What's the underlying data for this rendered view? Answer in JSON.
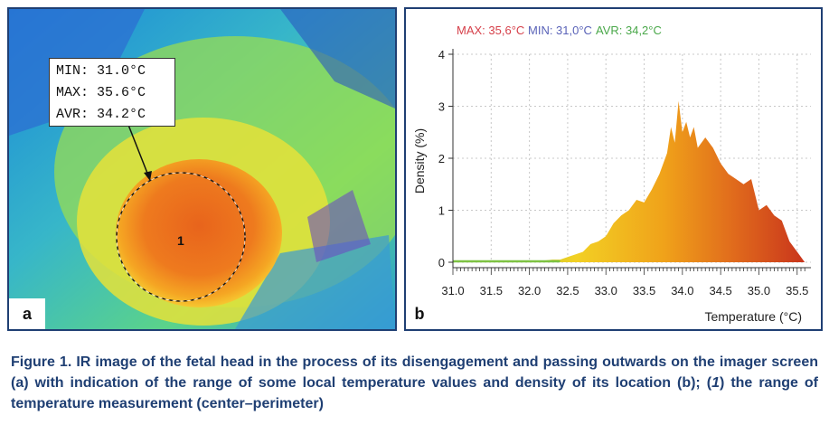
{
  "panel_a": {
    "letter": "a",
    "stats": {
      "min": "MIN: 31.0°C",
      "max": "MAX: 35.6°C",
      "avr": "AVR: 34.2°C"
    },
    "region_label": "1"
  },
  "panel_b": {
    "letter": "b",
    "header": {
      "max": "MAX: 35,6°C",
      "min": "MIN: 31,0°C",
      "avr": "AVR: 34,2°C",
      "max_color": "#d6404a",
      "min_color": "#5a63b8",
      "avr_color": "#4aa84a"
    }
  },
  "chart_data": {
    "type": "area",
    "xlabel": "Temperature (°C)",
    "ylabel": "Density (%)",
    "xlim": [
      31.0,
      35.6
    ],
    "ylim": [
      0,
      4
    ],
    "xticks": [
      "31.0",
      "31.5",
      "32.0",
      "32.5",
      "33.0",
      "33.5",
      "34.0",
      "34.5",
      "35.0",
      "35.5"
    ],
    "yticks": [
      "0",
      "1",
      "2",
      "3",
      "4"
    ],
    "grid": true,
    "gradient_colors": [
      "#7dc242",
      "#f2d024",
      "#f0a21a",
      "#e06a1c",
      "#c9351c"
    ],
    "x": [
      31.0,
      31.5,
      32.0,
      32.3,
      32.4,
      32.5,
      32.6,
      32.7,
      32.8,
      32.9,
      33.0,
      33.1,
      33.2,
      33.3,
      33.4,
      33.5,
      33.6,
      33.7,
      33.8,
      33.85,
      33.9,
      33.95,
      34.0,
      34.05,
      34.1,
      34.15,
      34.2,
      34.3,
      34.4,
      34.5,
      34.6,
      34.7,
      34.8,
      34.9,
      35.0,
      35.1,
      35.2,
      35.3,
      35.4,
      35.5,
      35.6
    ],
    "values": [
      0.0,
      0.0,
      0.0,
      0.05,
      0.05,
      0.1,
      0.15,
      0.2,
      0.35,
      0.4,
      0.5,
      0.75,
      0.9,
      1.0,
      1.2,
      1.15,
      1.4,
      1.7,
      2.1,
      2.6,
      2.3,
      3.1,
      2.5,
      2.7,
      2.4,
      2.6,
      2.2,
      2.4,
      2.2,
      1.9,
      1.7,
      1.6,
      1.5,
      1.6,
      1.0,
      1.1,
      0.9,
      0.8,
      0.4,
      0.2,
      0.0
    ]
  },
  "caption": {
    "text_1": "Figure 1. IR image of the fetal head in the process of its disengagement and passing outwards on the imager screen (a) with indication of the range of some local temperature values and density of its location (b); (",
    "italic": "1",
    "text_2": ") the range of temperature measurement (center–perimeter)"
  }
}
